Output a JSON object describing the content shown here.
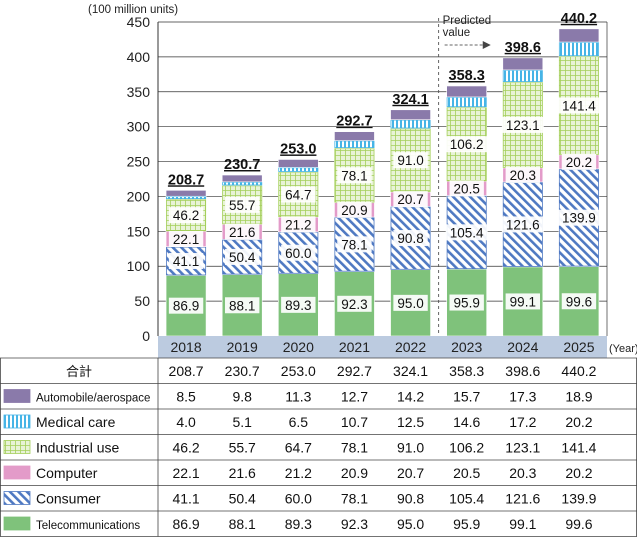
{
  "chart_data": {
    "type": "bar",
    "stacked": true,
    "y_unit_label": "(100 million units)",
    "x_unit_label": "(Year)",
    "ylim": [
      0,
      450
    ],
    "yticks": [
      0,
      50,
      100,
      150,
      200,
      250,
      300,
      350,
      400,
      450
    ],
    "grid": true,
    "categories": [
      "2018",
      "2019",
      "2020",
      "2021",
      "2022",
      "2023",
      "2024",
      "2025"
    ],
    "predicted_annotation": "Predicted value",
    "predicted_start_index": 5,
    "total_row_label": "合計",
    "totals": [
      "208.7",
      "230.7",
      "253.0",
      "292.7",
      "324.1",
      "358.3",
      "398.6",
      "440.2"
    ],
    "series": [
      {
        "name": "Telecommunications",
        "color": "#7fc27b",
        "pattern": "solid",
        "values": [
          86.9,
          88.1,
          89.3,
          92.3,
          95.0,
          95.9,
          99.1,
          99.6
        ]
      },
      {
        "name": "Consumer",
        "color": "#4f79c2",
        "pattern": "diagonal",
        "values": [
          41.1,
          50.4,
          60.0,
          78.1,
          90.8,
          105.4,
          121.6,
          139.9
        ]
      },
      {
        "name": "Computer",
        "color": "#e39bc9",
        "pattern": "solid",
        "values": [
          22.1,
          21.6,
          21.2,
          20.9,
          20.7,
          20.5,
          20.3,
          20.2
        ]
      },
      {
        "name": "Industrial use",
        "color": "#a4cf5a",
        "pattern": "grid",
        "values": [
          46.2,
          55.7,
          64.7,
          78.1,
          91.0,
          106.2,
          123.1,
          141.4
        ]
      },
      {
        "name": "Medical care",
        "color": "#46b4e6",
        "pattern": "vertical",
        "values": [
          4.0,
          5.1,
          6.5,
          10.7,
          12.5,
          14.6,
          17.2,
          20.2
        ]
      },
      {
        "name": "Automobile/aerospace",
        "color": "#8a7aaa",
        "pattern": "solid",
        "values": [
          8.5,
          9.8,
          11.3,
          12.7,
          14.2,
          15.7,
          17.3,
          18.9
        ]
      }
    ],
    "table_row_order": [
      "Automobile/aerospace",
      "Medical care",
      "Industrial use",
      "Computer",
      "Consumer",
      "Telecommunications"
    ]
  }
}
